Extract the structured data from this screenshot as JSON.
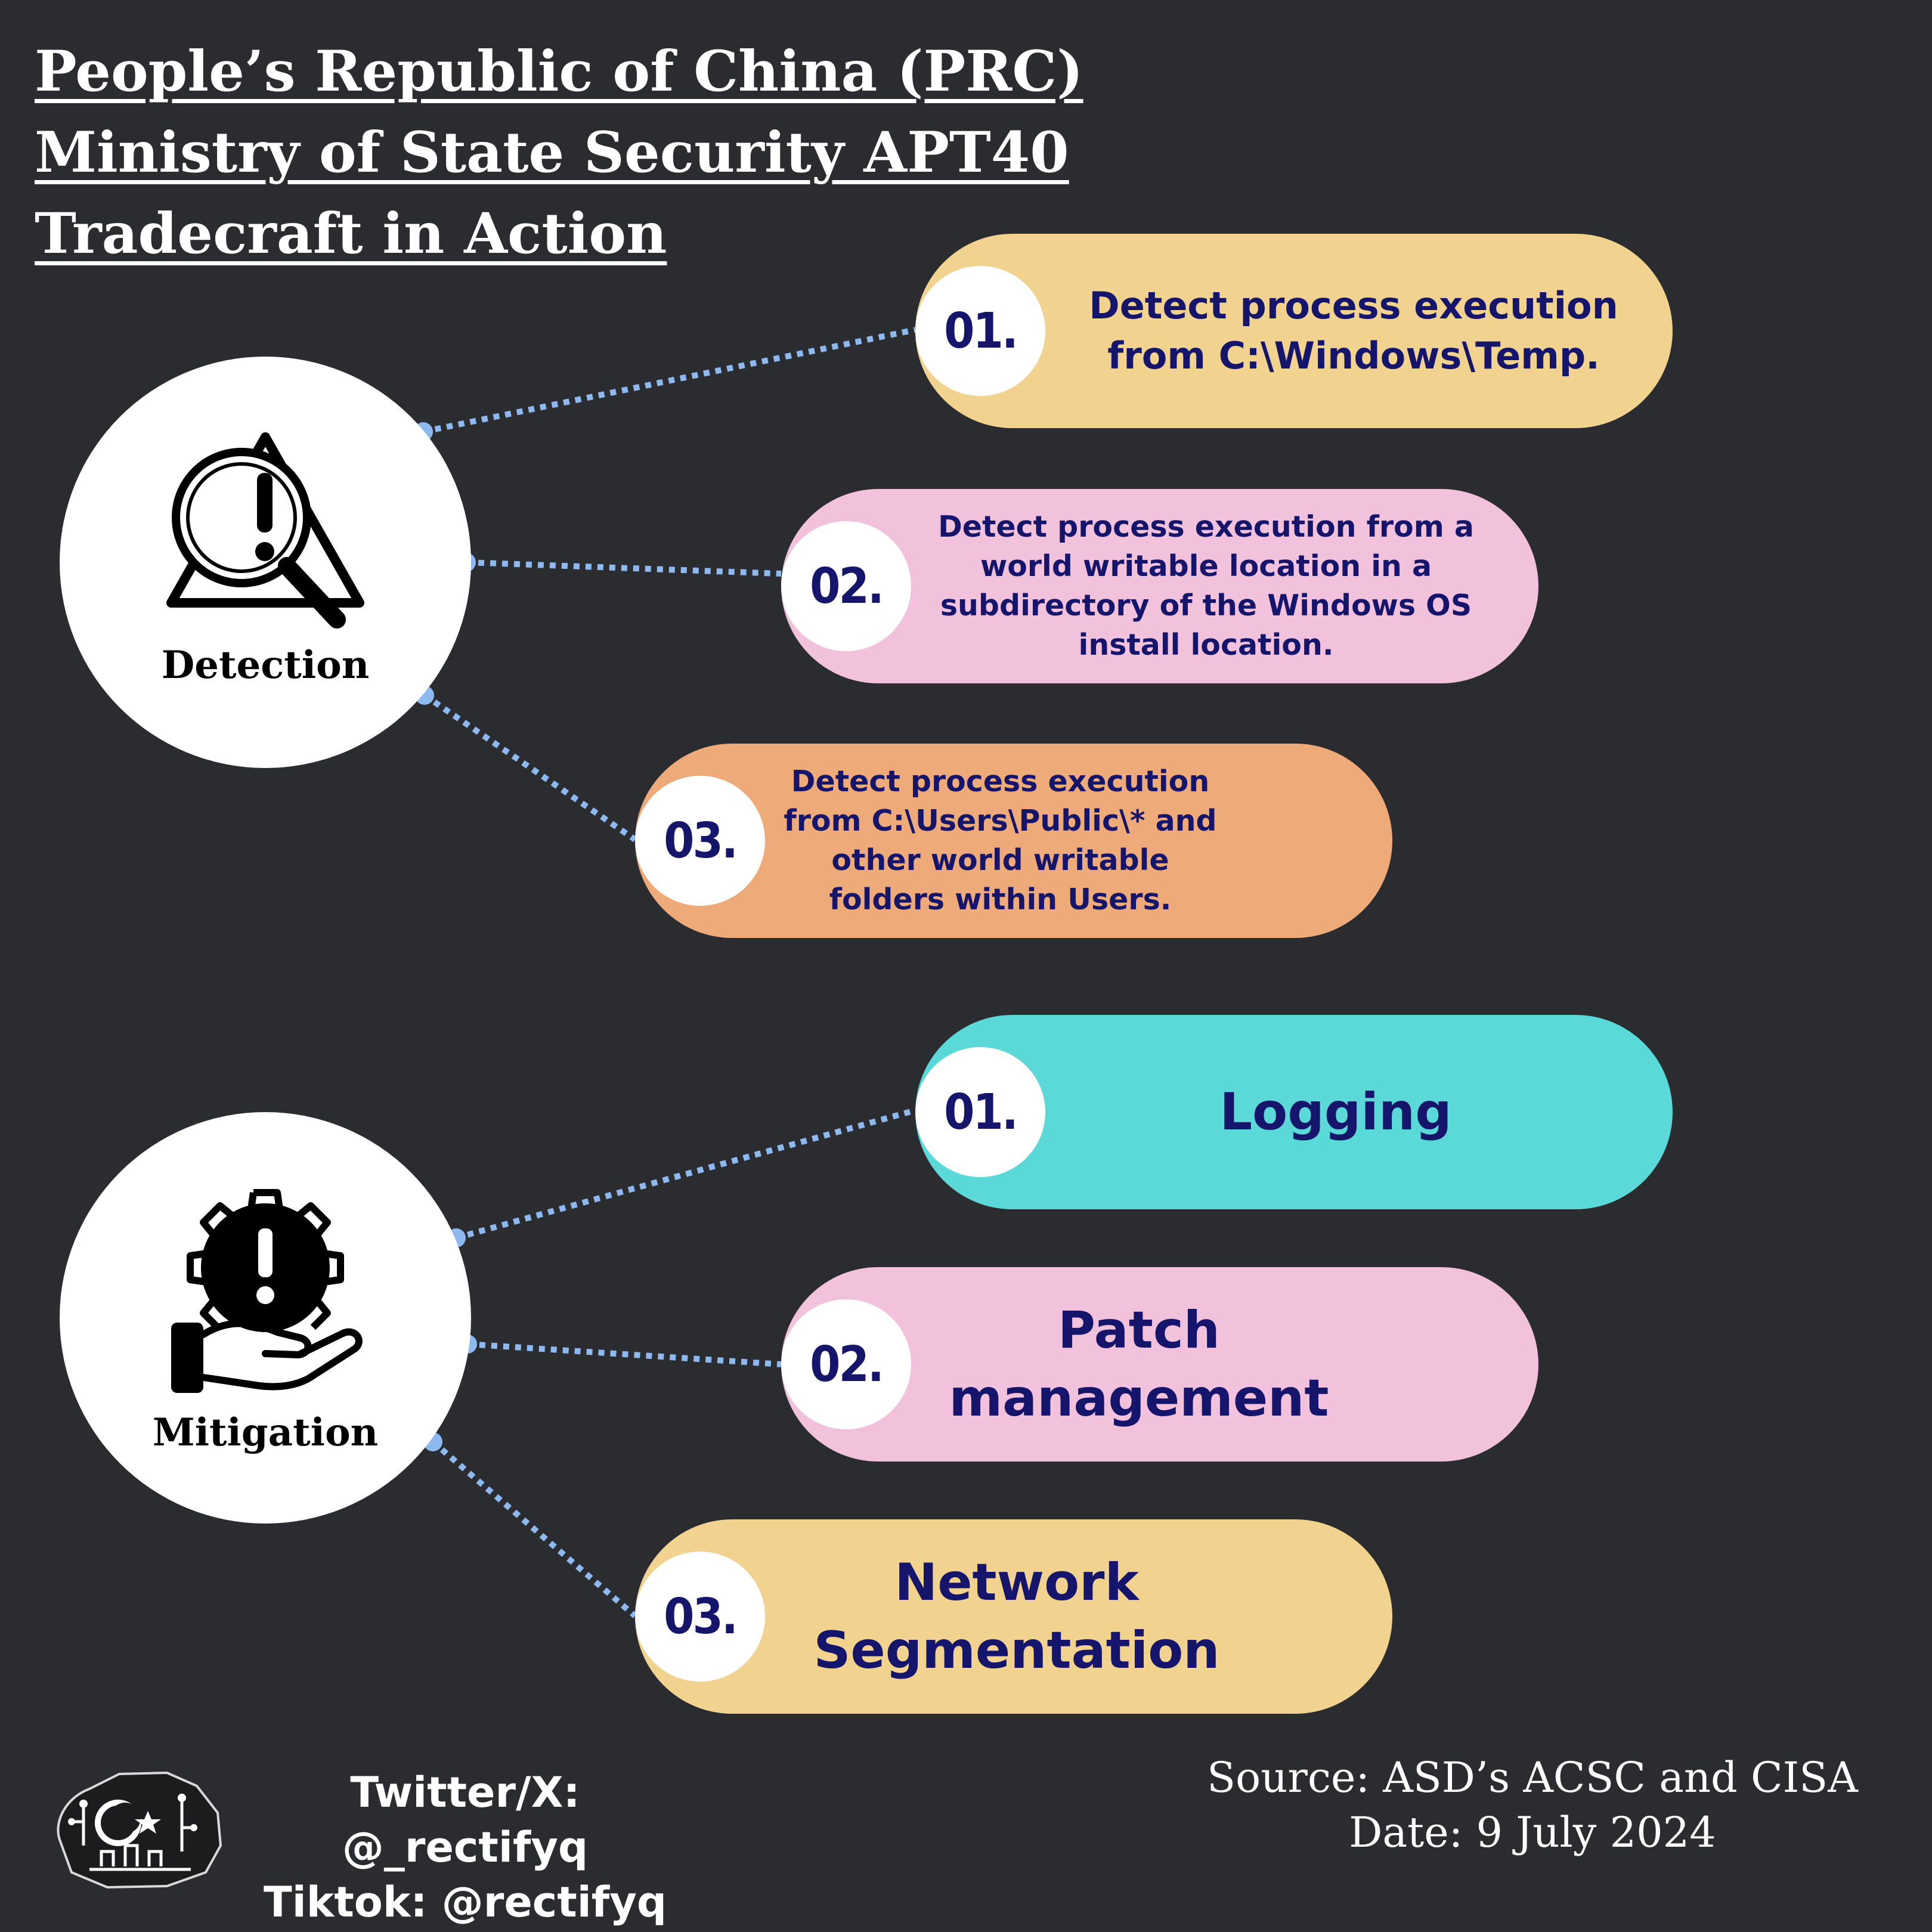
{
  "title": {
    "line1": "People’s Republic of China (PRC)",
    "line2": "Ministry of State Security APT40",
    "line3": "Tradecraft in Action"
  },
  "detection": {
    "label": "Detection",
    "icon": "magnifier-warning-icon",
    "items": [
      {
        "number": "01.",
        "text": "Detect process execution from C:\\Windows\\Temp.",
        "color": "#f1d28e"
      },
      {
        "number": "02.",
        "text": "Detect process execution from a world writable location in a subdirectory of the Windows OS install location.",
        "color": "#f2c1dc"
      },
      {
        "number": "03.",
        "text": "Detect process execution from C:\\Users\\Public\\* and other world writable folders within Users.",
        "color": "#eeaa78"
      }
    ]
  },
  "mitigation": {
    "label": "Mitigation",
    "icon": "gear-hand-warning-icon",
    "items": [
      {
        "number": "01.",
        "text": "Logging",
        "color": "#5bd8d8"
      },
      {
        "number": "02.",
        "text": "Patch management",
        "color": "#f2c1dc"
      },
      {
        "number": "03.",
        "text": "Network Segmentation",
        "color": "#f1d28e"
      }
    ]
  },
  "footer": {
    "twitter": "Twitter/X: @_rectifyq",
    "tiktok": "Tiktok: @rectifyq",
    "source": "Source: ASD’s ACSC and CISA",
    "date": "Date: 9 July 2024",
    "logo_icon": "rectifyq-logo-icon"
  },
  "colors": {
    "background": "#2a2c30",
    "connector": "#8db8f0",
    "text_dark": "#15166b"
  }
}
